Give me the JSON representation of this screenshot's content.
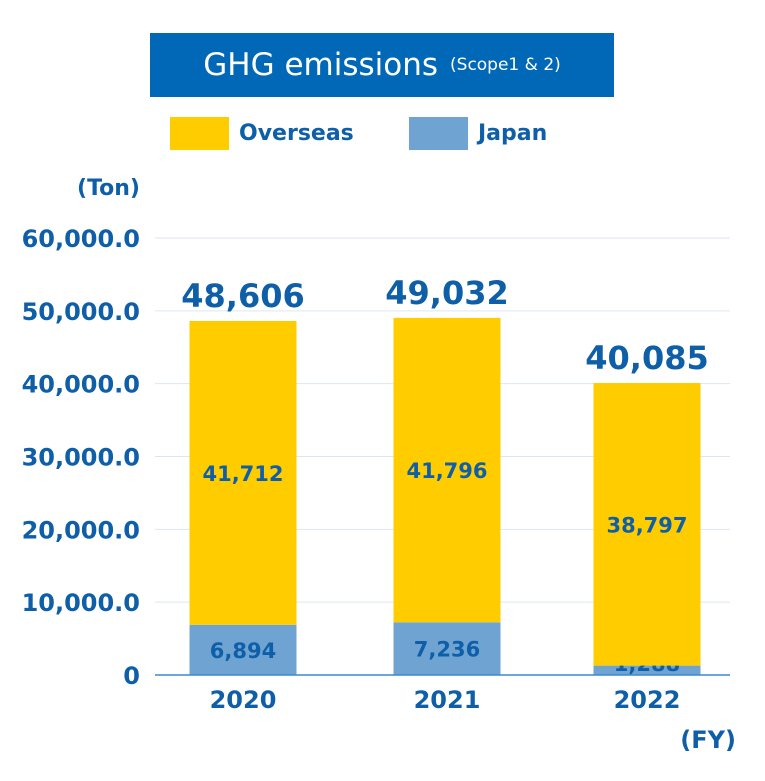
{
  "chart_data": {
    "type": "bar",
    "stacked": true,
    "title": "GHG emissions",
    "subtitle": "(Scope1 & 2)",
    "ylabel": "(Ton)",
    "xlabel": "(FY)",
    "categories": [
      "2020",
      "2021",
      "2022"
    ],
    "series": [
      {
        "name": "Japan",
        "values": [
          6894,
          7236,
          1288
        ],
        "labels": [
          "6,894",
          "7,236",
          "1,288"
        ],
        "color": "#6fa3d2"
      },
      {
        "name": "Overseas",
        "values": [
          41712,
          41796,
          38797
        ],
        "labels": [
          "41,712",
          "41,796",
          "38,797"
        ],
        "color": "#ffcc00"
      }
    ],
    "totals": [
      48606,
      49032,
      40085
    ],
    "total_labels": [
      "48,606",
      "49,032",
      "40,085"
    ],
    "ylim": [
      0,
      60000
    ],
    "yticks": [
      0,
      10000,
      20000,
      30000,
      40000,
      50000,
      60000
    ],
    "ytick_labels": [
      "0",
      "10,000.0",
      "20,000.0",
      "30,000.0",
      "40,000.0",
      "50,000.0",
      "60,000.0"
    ],
    "grid": true,
    "legend": "top"
  },
  "colors": {
    "text": "#0f5fa8",
    "title_bg": "#0068b6",
    "grid": "#dde6f0",
    "axis": "#3a8ad0"
  }
}
